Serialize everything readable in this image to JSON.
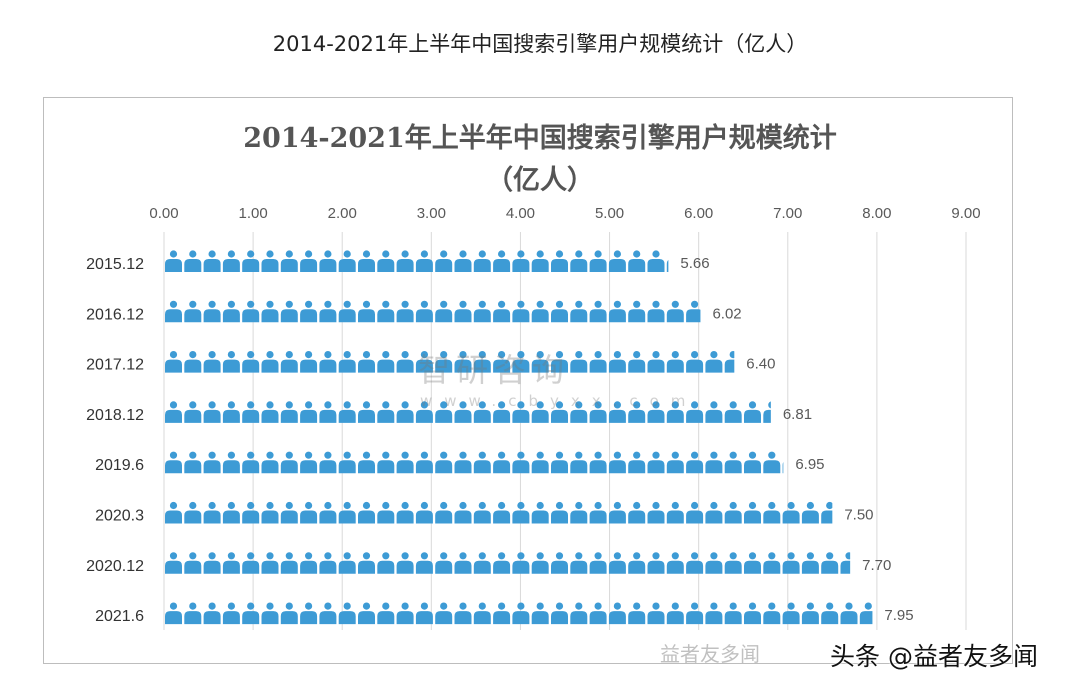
{
  "page_title": "2014-2021年上半年中国搜索引擎用户规模统计（亿人）",
  "watermark": {
    "name": "智研咨询",
    "url": "www.cbyxx.com"
  },
  "credit": "头条 @益者友多闻",
  "credit_faint": "益者友多闻",
  "chart_data": {
    "type": "bar",
    "orientation": "horizontal",
    "mark": "person-icon pictogram",
    "title_line1": "2014-2021年上半年中国搜索引擎用户规模统计",
    "title_line2": "（亿人）",
    "categories": [
      "2015.12",
      "2016.12",
      "2017.12",
      "2018.12",
      "2019.6",
      "2020.3",
      "2020.12",
      "2021.6"
    ],
    "values": [
      5.66,
      6.02,
      6.4,
      6.81,
      6.95,
      7.5,
      7.7,
      7.95
    ],
    "value_labels": [
      "5.66",
      "6.02",
      "6.40",
      "6.81",
      "6.95",
      "7.50",
      "7.70",
      "7.95"
    ],
    "xlim": [
      0,
      9
    ],
    "x_ticks": [
      "0.00",
      "1.00",
      "2.00",
      "3.00",
      "4.00",
      "5.00",
      "6.00",
      "7.00",
      "8.00",
      "9.00"
    ],
    "axis_position": "top",
    "grid": true,
    "colors": {
      "bar": "#3d9bd5",
      "grid": "#d9d9d9",
      "label": "#595959"
    }
  }
}
